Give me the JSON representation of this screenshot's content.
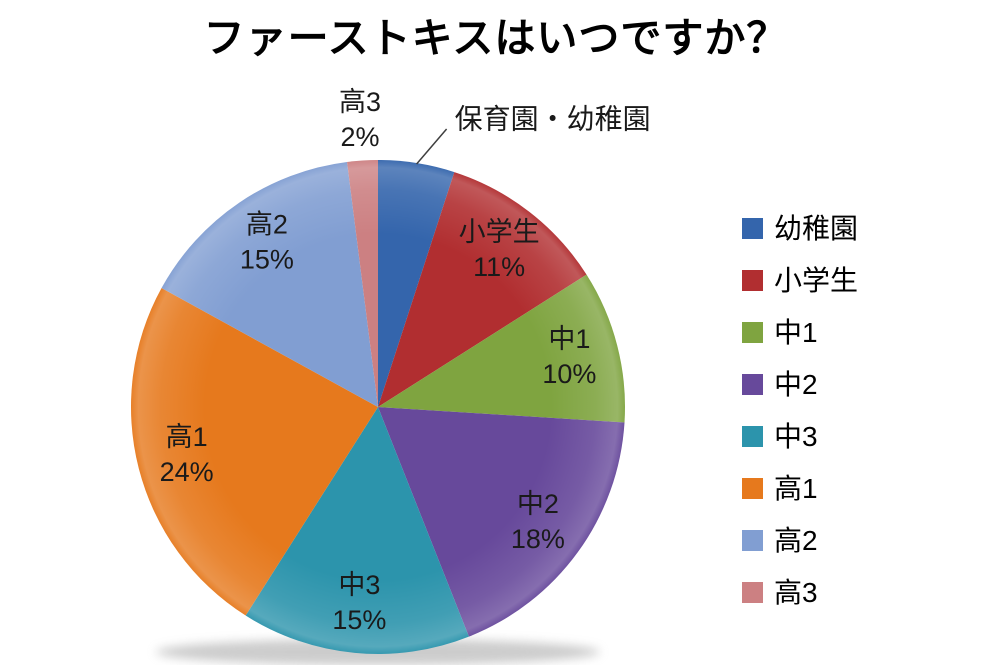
{
  "title": "ファーストキスはいつですか？",
  "chart_data": {
    "type": "pie",
    "title": "ファーストキスはいつですか？",
    "unit": "percent",
    "direction": "clockwise",
    "start_angle_deg": 0,
    "legend_position": "right",
    "total": 100,
    "slices": [
      {
        "key": "kindergarten",
        "label": "幼稚園",
        "chart_label": "保育園・幼稚園",
        "value": 5,
        "percent_label": null,
        "color": "#3465AC",
        "label_placement": "callout"
      },
      {
        "key": "elementary",
        "label": "小学生",
        "chart_label": "小学生",
        "value": 11,
        "percent_label": "11%",
        "color": "#B12E30",
        "label_placement": "inside"
      },
      {
        "key": "jhs1",
        "label": "中1",
        "chart_label": "中1",
        "value": 10,
        "percent_label": "10%",
        "color": "#7FA440",
        "label_placement": "inside"
      },
      {
        "key": "jhs2",
        "label": "中2",
        "chart_label": "中2",
        "value": 18,
        "percent_label": "18%",
        "color": "#67499B",
        "label_placement": "inside"
      },
      {
        "key": "jhs3",
        "label": "中3",
        "chart_label": "中3",
        "value": 15,
        "percent_label": "15%",
        "color": "#2C94AC",
        "label_placement": "inside"
      },
      {
        "key": "hs1",
        "label": "高1",
        "chart_label": "高1",
        "value": 24,
        "percent_label": "24%",
        "color": "#E6791D",
        "label_placement": "inside"
      },
      {
        "key": "hs2",
        "label": "高2",
        "chart_label": "高2",
        "value": 15,
        "percent_label": "15%",
        "color": "#819ED2",
        "label_placement": "inside"
      },
      {
        "key": "hs3",
        "label": "高3",
        "chart_label": "高3",
        "value": 2,
        "percent_label": "2%",
        "color": "#CC8082",
        "label_placement": "outside"
      }
    ]
  }
}
